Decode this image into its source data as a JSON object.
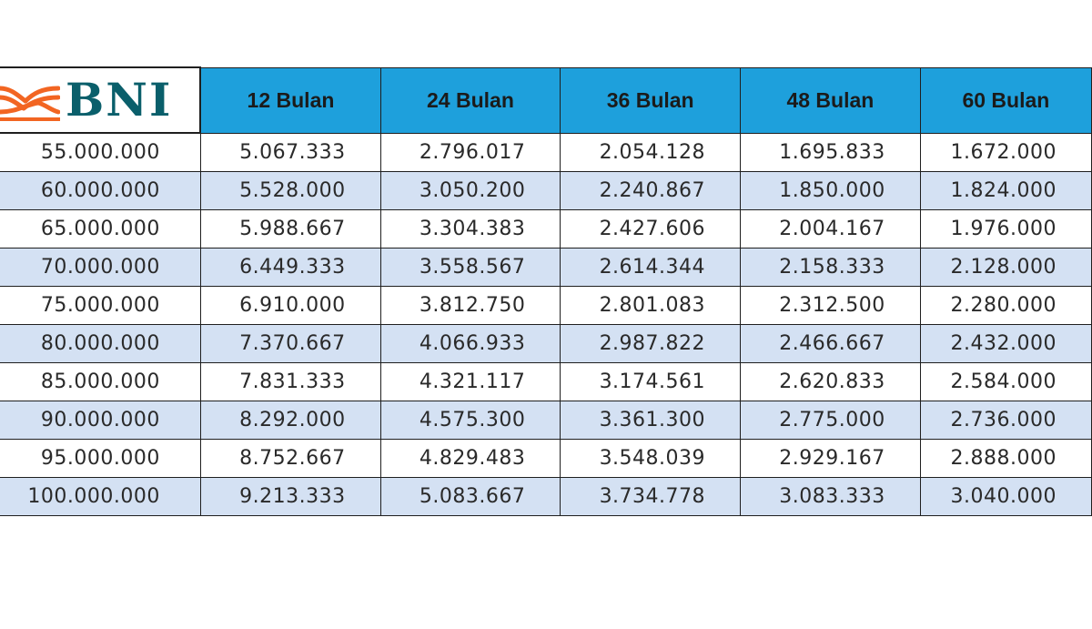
{
  "logo": {
    "text": "BNI",
    "icon": "bni-wave-logo",
    "brand_color": "#0a5f6b",
    "accent_color": "#f26522"
  },
  "header": {
    "columns": [
      "12 Bulan",
      "24 Bulan",
      "36 Bulan",
      "48 Bulan",
      "60 Bulan"
    ],
    "background": "#1ea0dc"
  },
  "stripe_color": "#d4e1f3",
  "rows": [
    {
      "principal": "55.000.000",
      "values": [
        "5.067.333",
        "2.796.017",
        "2.054.128",
        "1.695.833",
        "1.672.000"
      ]
    },
    {
      "principal": "60.000.000",
      "values": [
        "5.528.000",
        "3.050.200",
        "2.240.867",
        "1.850.000",
        "1.824.000"
      ]
    },
    {
      "principal": "65.000.000",
      "values": [
        "5.988.667",
        "3.304.383",
        "2.427.606",
        "2.004.167",
        "1.976.000"
      ]
    },
    {
      "principal": "70.000.000",
      "values": [
        "6.449.333",
        "3.558.567",
        "2.614.344",
        "2.158.333",
        "2.128.000"
      ]
    },
    {
      "principal": "75.000.000",
      "values": [
        "6.910.000",
        "3.812.750",
        "2.801.083",
        "2.312.500",
        "2.280.000"
      ]
    },
    {
      "principal": "80.000.000",
      "values": [
        "7.370.667",
        "4.066.933",
        "2.987.822",
        "2.466.667",
        "2.432.000"
      ]
    },
    {
      "principal": "85.000.000",
      "values": [
        "7.831.333",
        "4.321.117",
        "3.174.561",
        "2.620.833",
        "2.584.000"
      ]
    },
    {
      "principal": "90.000.000",
      "values": [
        "8.292.000",
        "4.575.300",
        "3.361.300",
        "2.775.000",
        "2.736.000"
      ]
    },
    {
      "principal": "95.000.000",
      "values": [
        "8.752.667",
        "4.829.483",
        "3.548.039",
        "2.929.167",
        "2.888.000"
      ]
    },
    {
      "principal": "100.000.000",
      "values": [
        "9.213.333",
        "5.083.667",
        "3.734.778",
        "3.083.333",
        "3.040.000"
      ]
    }
  ]
}
